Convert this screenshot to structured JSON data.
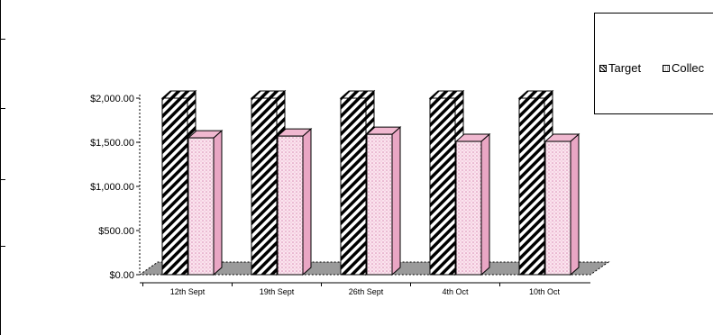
{
  "chart_data": {
    "type": "bar",
    "categories": [
      "12th Sept",
      "19th Sept",
      "26th Sept",
      "4th Oct",
      "10th Oct"
    ],
    "series": [
      {
        "name": "Target",
        "values": [
          2000,
          2000,
          2000,
          2000,
          2000
        ],
        "pattern": "diagonal-hatch",
        "color": "#000000"
      },
      {
        "name": "Collec",
        "values": [
          1550,
          1570,
          1590,
          1510,
          1510
        ],
        "pattern": "pink-dots",
        "color": "#f6c8dc"
      }
    ],
    "y_tick_labels": [
      "$0.00",
      "$500.00",
      "$1,000.00",
      "$1,500.00",
      "$2,000.00"
    ],
    "y_ticks": [
      0,
      500,
      1000,
      1500,
      2000
    ],
    "ylim": [
      0,
      2000
    ],
    "grid": false,
    "legend_position": "top-right",
    "style": "3d-column",
    "floor_color": "#9a9a9a"
  }
}
